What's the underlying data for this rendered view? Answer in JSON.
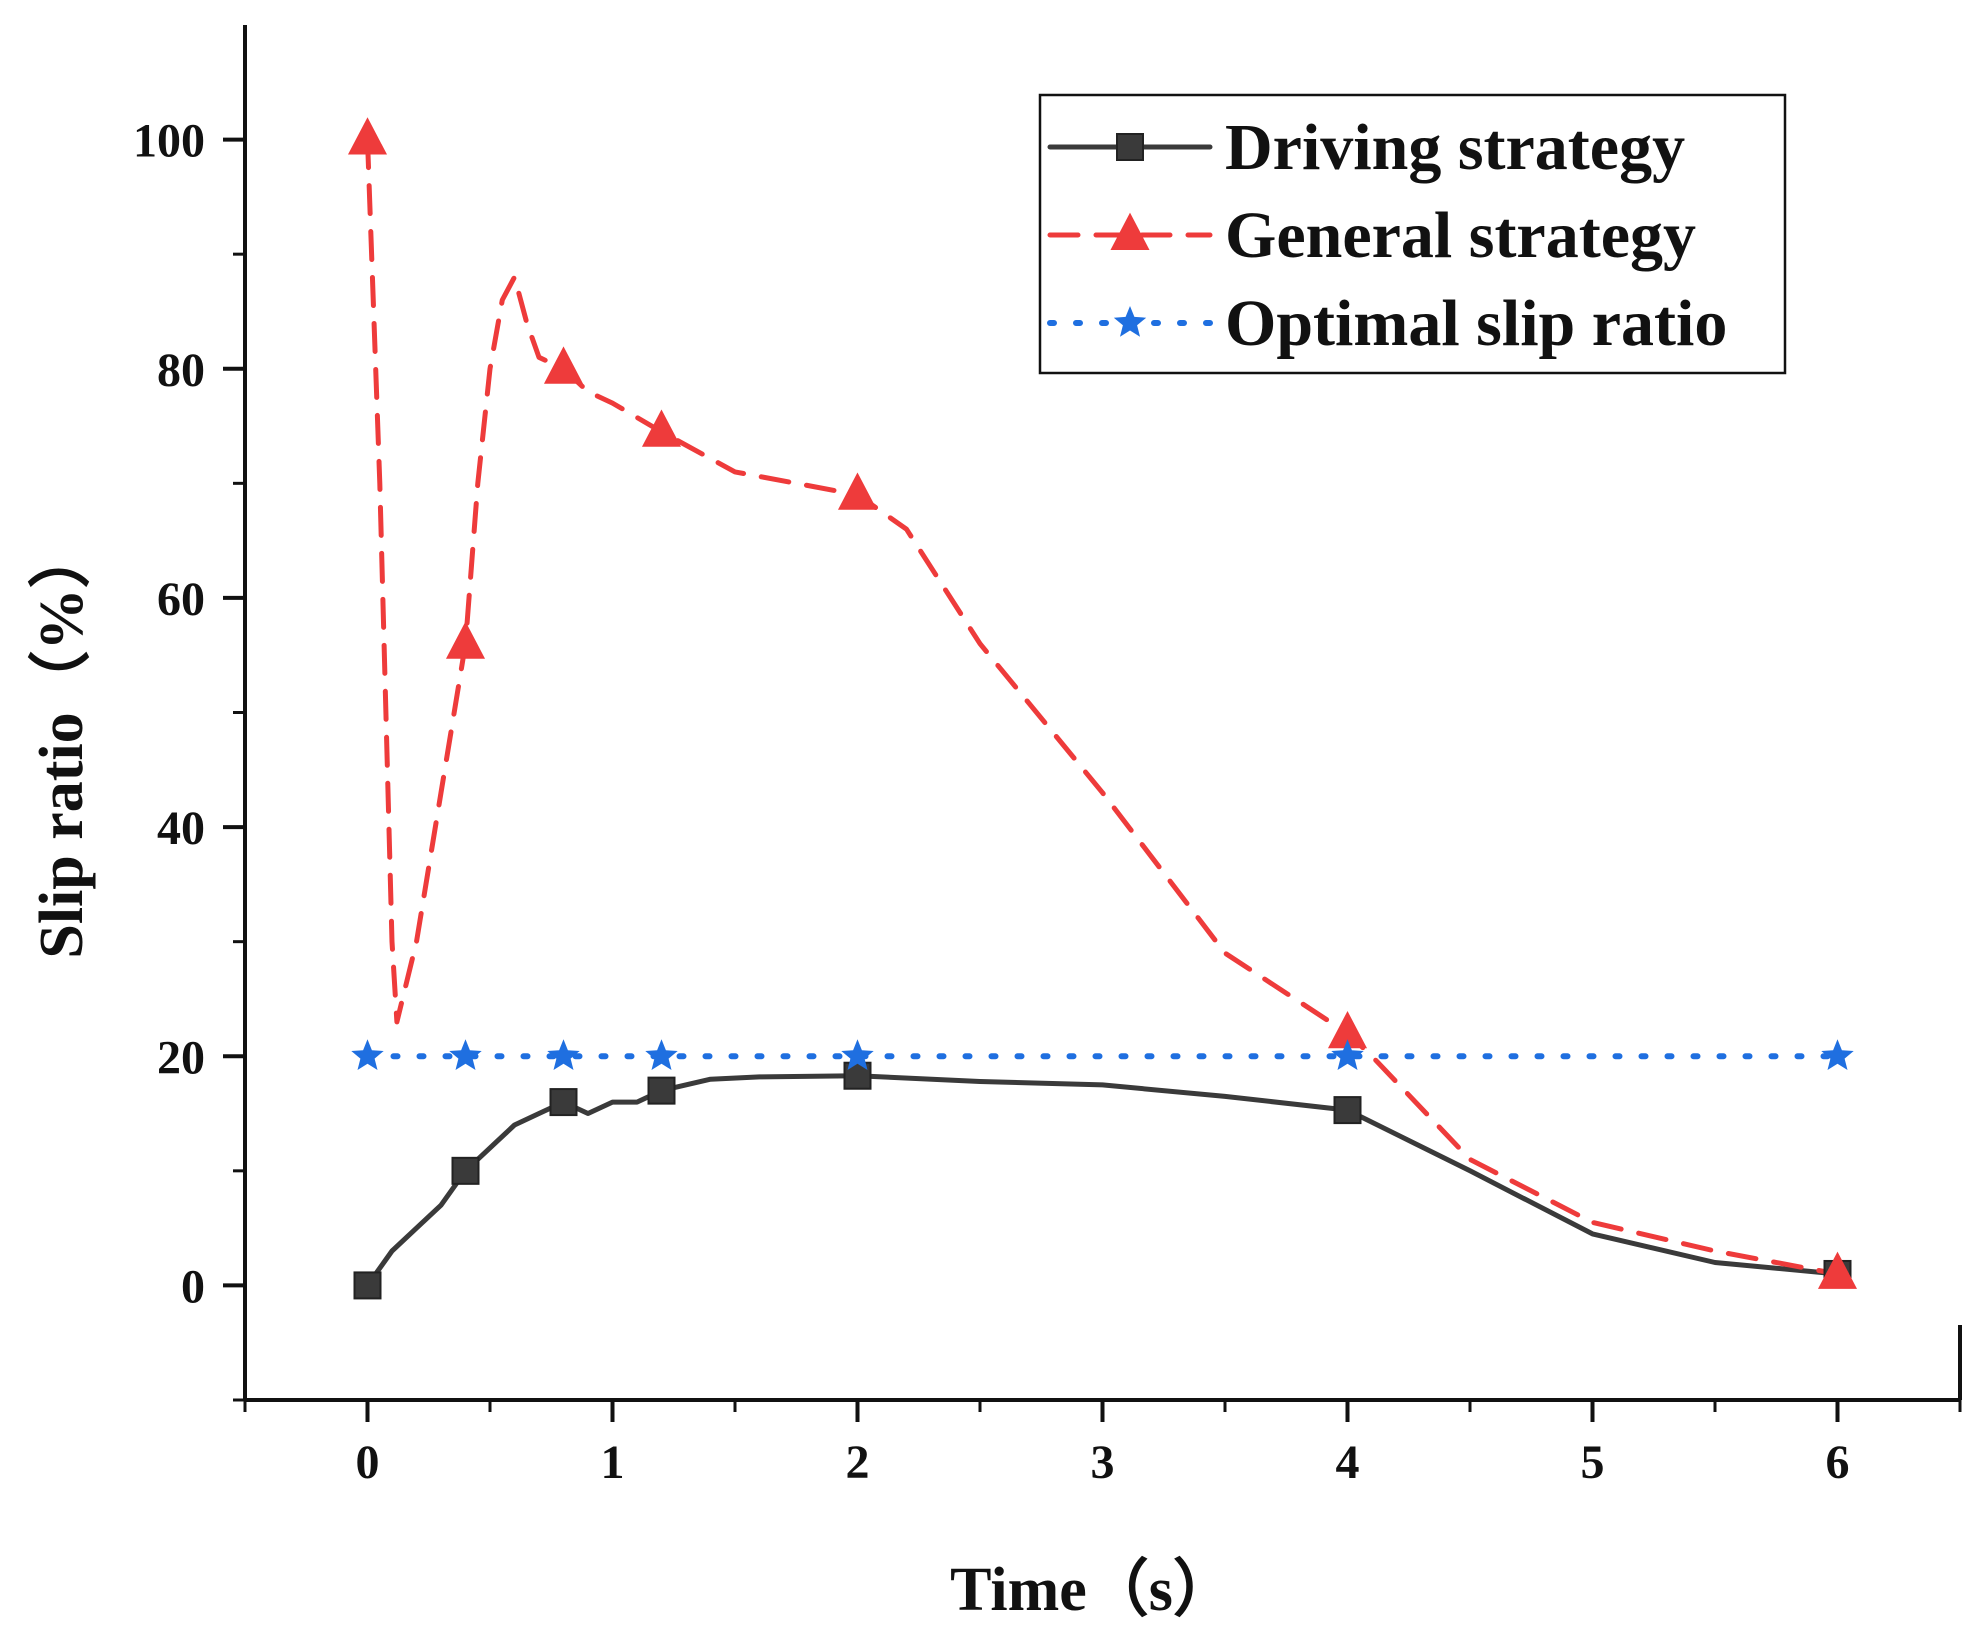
{
  "chart_data": {
    "type": "line",
    "xlabel": "Time（s）",
    "ylabel": "Slip ratio（%）",
    "xlim": [
      -0.5,
      6.5
    ],
    "ylim": [
      -10,
      110
    ],
    "x_ticks": [
      "0",
      "1",
      "2",
      "3",
      "4",
      "5",
      "6"
    ],
    "y_ticks": [
      "0",
      "20",
      "40",
      "60",
      "80",
      "100"
    ],
    "grid": false,
    "legend_position": "top-right",
    "series": [
      {
        "name": "Driving strategy",
        "color": "#3a3a3a",
        "line_style": "solid",
        "marker": "square",
        "x": [
          0,
          0.1,
          0.2,
          0.3,
          0.4,
          0.5,
          0.6,
          0.7,
          0.8,
          0.9,
          1.0,
          1.1,
          1.2,
          1.4,
          1.6,
          2.0,
          2.5,
          3.0,
          3.5,
          4.0,
          4.5,
          5.0,
          5.5,
          6.0
        ],
        "y": [
          0,
          3,
          5,
          7,
          10,
          12,
          14,
          15,
          16,
          15,
          16,
          16,
          17,
          18,
          18.2,
          18.3,
          17.8,
          17.5,
          16.5,
          15.3,
          10,
          4.5,
          2,
          1
        ],
        "marker_x": [
          0,
          0.4,
          0.8,
          1.2,
          2.0,
          4.0,
          6.0
        ],
        "marker_y": [
          0,
          10,
          16,
          17,
          18.3,
          15.3,
          1
        ]
      },
      {
        "name": "General strategy",
        "color": "#ee3b3b",
        "line_style": "dashed",
        "marker": "triangle",
        "x": [
          0,
          0.05,
          0.1,
          0.12,
          0.2,
          0.3,
          0.4,
          0.45,
          0.5,
          0.55,
          0.6,
          0.65,
          0.7,
          0.8,
          0.9,
          1.0,
          1.2,
          1.5,
          2.0,
          2.2,
          2.5,
          3.0,
          3.5,
          4.0,
          4.1,
          4.5,
          5.0,
          5.5,
          6.0
        ],
        "y": [
          100,
          70,
          30,
          23,
          30,
          43,
          56,
          70,
          80,
          86,
          88,
          84,
          81,
          80,
          78,
          77,
          74.5,
          71,
          69,
          66,
          56,
          43,
          29,
          22,
          20,
          11,
          5.5,
          3,
          1
        ],
        "marker_x": [
          0,
          0.4,
          0.8,
          1.2,
          2.0,
          4.0,
          6.0
        ],
        "marker_y": [
          100,
          56,
          80,
          74.5,
          69,
          22,
          1
        ]
      },
      {
        "name": "Optimal slip ratio",
        "color": "#1f6fe0",
        "line_style": "dotted",
        "marker": "star",
        "x": [
          0,
          6
        ],
        "y": [
          20,
          20
        ],
        "marker_x": [
          0,
          0.4,
          0.8,
          1.2,
          2.0,
          4.0,
          6.0
        ],
        "marker_y": [
          20,
          20,
          20,
          20,
          20,
          20,
          20
        ]
      }
    ]
  }
}
